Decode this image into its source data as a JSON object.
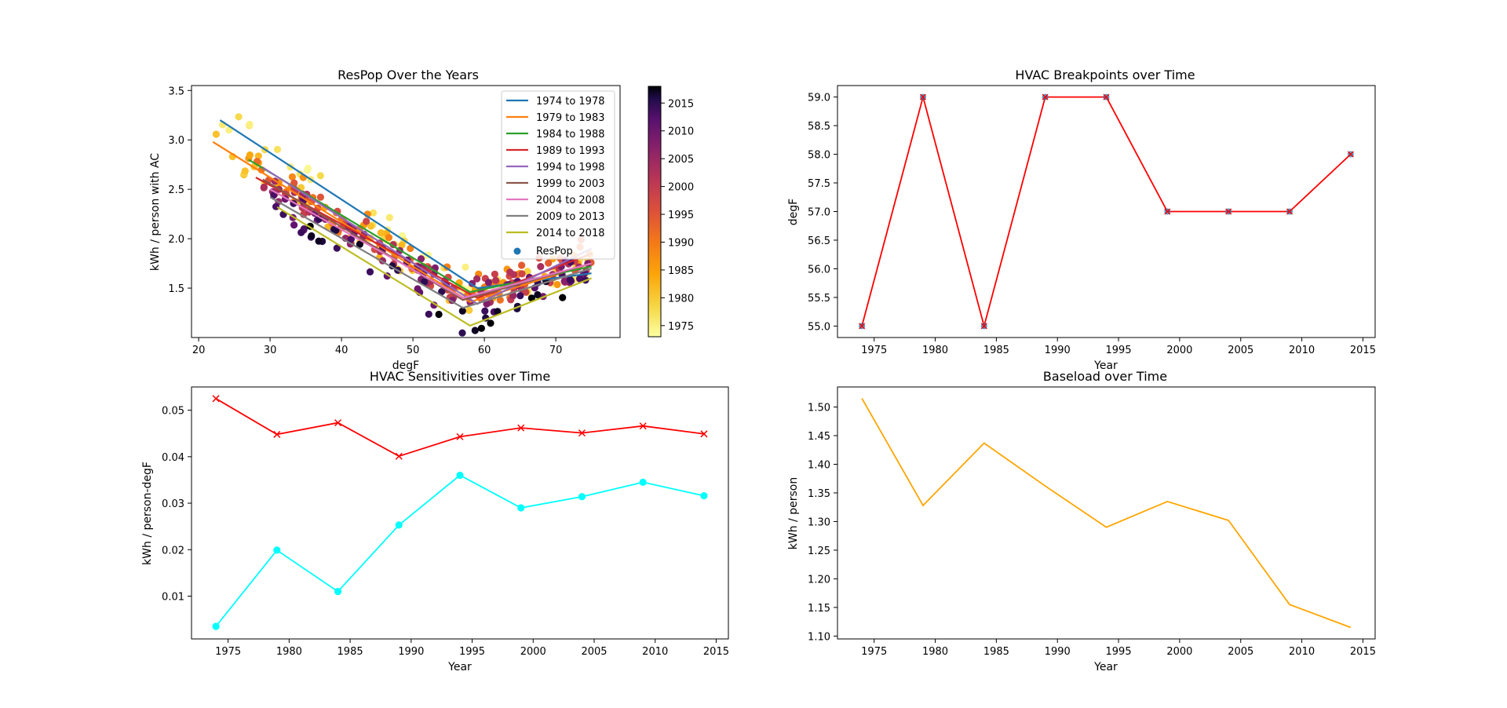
{
  "colors": {
    "red": "#ff0000",
    "cyan": "#00ffff",
    "orange": "#ffa500",
    "breakpoint_markers": "#1f77b4",
    "tab10": [
      "#1f77b4",
      "#ff7f0e",
      "#2ca02c",
      "#d62728",
      "#9467bd",
      "#8c564b",
      "#e377c2",
      "#7f7f7f",
      "#bcbd22"
    ],
    "colorbar_colormap": "inferno_r"
  },
  "chart_data": [
    {
      "id": "respop",
      "type": "scatter",
      "title": "ResPop Over the Years",
      "xlabel": "degF",
      "ylabel": "kWh / person with AC",
      "xlim": [
        19,
        79
      ],
      "ylim": [
        1.0,
        3.55
      ],
      "xticks": [
        "20",
        "30",
        "40",
        "50",
        "60",
        "70"
      ],
      "yticks": [
        "1.5",
        "2.0",
        "2.5",
        "3.0",
        "3.5"
      ],
      "legend_position": "top-right",
      "series": [
        {
          "name": "1974 to 1978",
          "x": [
            23,
            59,
            75
          ],
          "y": [
            3.2,
            1.5,
            1.65
          ]
        },
        {
          "name": "1979 to 1983",
          "x": [
            22,
            58,
            75
          ],
          "y": [
            2.98,
            1.36,
            1.75
          ]
        },
        {
          "name": "1984 to 1988",
          "x": [
            27,
            58,
            75
          ],
          "y": [
            2.8,
            1.46,
            1.72
          ]
        },
        {
          "name": "1989 to 1993",
          "x": [
            28,
            59,
            75
          ],
          "y": [
            2.62,
            1.4,
            1.85
          ]
        },
        {
          "name": "1994 to 1998",
          "x": [
            29,
            59,
            75
          ],
          "y": [
            2.72,
            1.34,
            1.9
          ]
        },
        {
          "name": "1999 to 2003",
          "x": [
            29,
            57,
            75
          ],
          "y": [
            2.6,
            1.38,
            1.75
          ]
        },
        {
          "name": "2004 to 2008",
          "x": [
            30,
            57,
            75
          ],
          "y": [
            2.5,
            1.4,
            1.75
          ]
        },
        {
          "name": "2009 to 2013",
          "x": [
            30,
            57,
            75
          ],
          "y": [
            2.42,
            1.3,
            1.7
          ]
        },
        {
          "name": "2014 to 2018",
          "x": [
            31,
            58,
            75
          ],
          "y": [
            2.32,
            1.12,
            1.6
          ]
        }
      ],
      "scatter_legend_label": "ResPop",
      "colorbar": {
        "min": 1973,
        "max": 2018,
        "ticks": [
          "1975",
          "1980",
          "1985",
          "1990",
          "1995",
          "2000",
          "2005",
          "2010",
          "2015"
        ]
      }
    },
    {
      "id": "breakpoints",
      "type": "line",
      "title": "HVAC Breakpoints over Time",
      "xlabel": "Year",
      "ylabel": "degF",
      "xlim": [
        1972,
        2016
      ],
      "ylim": [
        54.8,
        59.2
      ],
      "xticks": [
        "1975",
        "1980",
        "1985",
        "1990",
        "1995",
        "2000",
        "2005",
        "2010",
        "2015"
      ],
      "yticks": [
        "55.0",
        "55.5",
        "56.0",
        "56.5",
        "57.0",
        "57.5",
        "58.0",
        "58.5",
        "59.0"
      ],
      "x": [
        1974,
        1979,
        1984,
        1989,
        1994,
        1999,
        2004,
        2009,
        2014
      ],
      "series": [
        {
          "values": [
            55,
            59,
            55,
            59,
            59,
            57,
            57,
            57,
            58
          ]
        }
      ]
    },
    {
      "id": "sensitivities",
      "type": "line",
      "title": "HVAC Sensitivities over Time",
      "xlabel": "Year",
      "ylabel": "kWh / person-degF",
      "xlim": [
        1972,
        2016
      ],
      "ylim": [
        0.0008,
        0.055
      ],
      "xticks": [
        "1975",
        "1980",
        "1985",
        "1990",
        "1995",
        "2000",
        "2005",
        "2010",
        "2015"
      ],
      "yticks": [
        "0.01",
        "0.02",
        "0.03",
        "0.04",
        "0.05"
      ],
      "x": [
        1974,
        1979,
        1984,
        1989,
        1994,
        1999,
        2004,
        2009,
        2014
      ],
      "series": [
        {
          "values": [
            0.0525,
            0.0448,
            0.0473,
            0.0401,
            0.0443,
            0.0462,
            0.0451,
            0.0466,
            0.0449
          ]
        },
        {
          "values": [
            0.0035,
            0.0199,
            0.011,
            0.0253,
            0.036,
            0.029,
            0.0314,
            0.0345,
            0.0316
          ]
        }
      ]
    },
    {
      "id": "baseload",
      "type": "line",
      "title": "Baseload over Time",
      "xlabel": "Year",
      "ylabel": "kWh / person",
      "xlim": [
        1972,
        2016
      ],
      "ylim": [
        1.095,
        1.535
      ],
      "xticks": [
        "1975",
        "1980",
        "1985",
        "1990",
        "1995",
        "2000",
        "2005",
        "2010",
        "2015"
      ],
      "yticks": [
        "1.10",
        "1.15",
        "1.20",
        "1.25",
        "1.30",
        "1.35",
        "1.40",
        "1.45",
        "1.50"
      ],
      "x": [
        1974,
        1979,
        1984,
        1989,
        1994,
        1999,
        2004,
        2009,
        2014
      ],
      "series": [
        {
          "values": [
            1.515,
            1.328,
            1.437,
            1.362,
            1.29,
            1.335,
            1.302,
            1.155,
            1.115
          ]
        }
      ]
    }
  ]
}
